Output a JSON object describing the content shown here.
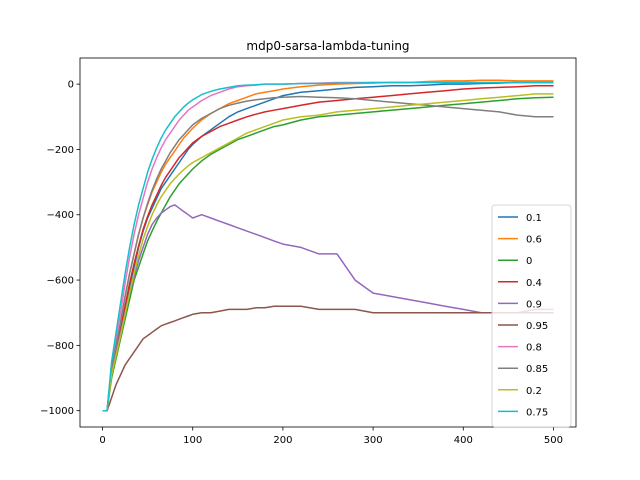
{
  "chart_data": {
    "type": "line",
    "title": "mdp0-sarsa-lambda-tuning",
    "xlabel": "",
    "ylabel": "",
    "xlim": [
      -25,
      525
    ],
    "ylim": [
      -1050,
      80
    ],
    "xticks": [
      0,
      100,
      200,
      300,
      400,
      500
    ],
    "yticks": [
      -1000,
      -800,
      -600,
      -400,
      -200,
      0
    ],
    "grid": false,
    "legend_position": "center-right",
    "x": [
      0,
      5,
      10,
      15,
      20,
      25,
      30,
      35,
      40,
      45,
      50,
      55,
      60,
      65,
      70,
      75,
      80,
      85,
      90,
      95,
      100,
      110,
      120,
      130,
      140,
      150,
      160,
      170,
      180,
      190,
      200,
      220,
      240,
      260,
      280,
      300,
      320,
      340,
      360,
      380,
      400,
      420,
      440,
      460,
      480,
      500
    ],
    "series": [
      {
        "name": "0.1",
        "color": "#1f77b4",
        "values": [
          -1000,
          -1000,
          -880,
          -820,
          -760,
          -690,
          -620,
          -560,
          -500,
          -450,
          -410,
          -380,
          -350,
          -320,
          -300,
          -280,
          -260,
          -240,
          -220,
          -200,
          -185,
          -160,
          -140,
          -120,
          -100,
          -85,
          -75,
          -65,
          -55,
          -45,
          -35,
          -25,
          -20,
          -15,
          -10,
          -8,
          -5,
          -5,
          -3,
          0,
          0,
          2,
          3,
          5,
          5,
          5
        ]
      },
      {
        "name": "0.6",
        "color": "#ff7f0e",
        "values": [
          -1000,
          -1000,
          -870,
          -800,
          -730,
          -650,
          -580,
          -520,
          -460,
          -410,
          -370,
          -330,
          -300,
          -270,
          -245,
          -225,
          -205,
          -185,
          -165,
          -150,
          -135,
          -110,
          -90,
          -75,
          -60,
          -50,
          -40,
          -30,
          -25,
          -20,
          -15,
          -8,
          -3,
          0,
          2,
          3,
          5,
          5,
          8,
          10,
          10,
          12,
          12,
          10,
          10,
          10
        ]
      },
      {
        "name": "0",
        "color": "#2ca02c",
        "values": [
          -1000,
          -1000,
          -900,
          -840,
          -780,
          -720,
          -660,
          -600,
          -560,
          -520,
          -480,
          -450,
          -420,
          -395,
          -370,
          -345,
          -325,
          -305,
          -290,
          -275,
          -260,
          -235,
          -215,
          -200,
          -185,
          -170,
          -160,
          -150,
          -140,
          -130,
          -125,
          -110,
          -100,
          -95,
          -90,
          -85,
          -80,
          -75,
          -70,
          -65,
          -60,
          -55,
          -50,
          -45,
          -42,
          -40
        ]
      },
      {
        "name": "0.4",
        "color": "#d62728",
        "values": [
          -1000,
          -1000,
          -880,
          -815,
          -750,
          -680,
          -610,
          -550,
          -495,
          -445,
          -405,
          -370,
          -340,
          -310,
          -285,
          -265,
          -245,
          -225,
          -210,
          -195,
          -180,
          -160,
          -145,
          -130,
          -120,
          -110,
          -100,
          -92,
          -85,
          -80,
          -75,
          -65,
          -55,
          -50,
          -45,
          -40,
          -35,
          -30,
          -25,
          -20,
          -15,
          -12,
          -10,
          -8,
          -5,
          -5
        ]
      },
      {
        "name": "0.9",
        "color": "#9467bd",
        "values": [
          -1000,
          -1000,
          -880,
          -820,
          -760,
          -700,
          -640,
          -590,
          -540,
          -500,
          -460,
          -430,
          -410,
          -395,
          -385,
          -375,
          -370,
          -380,
          -390,
          -400,
          -410,
          -400,
          -410,
          -420,
          -430,
          -440,
          -450,
          -460,
          -470,
          -480,
          -490,
          -500,
          -520,
          -520,
          -600,
          -640,
          -650,
          -660,
          -670,
          -680,
          -690,
          -700,
          -700,
          -700,
          -690,
          -690
        ]
      },
      {
        "name": "0.95",
        "color": "#8c564b",
        "values": [
          -1000,
          -1000,
          -960,
          -920,
          -890,
          -860,
          -840,
          -820,
          -800,
          -780,
          -770,
          -760,
          -750,
          -740,
          -735,
          -730,
          -725,
          -720,
          -715,
          -710,
          -705,
          -700,
          -700,
          -695,
          -690,
          -690,
          -690,
          -685,
          -685,
          -680,
          -680,
          -680,
          -690,
          -690,
          -690,
          -700,
          -700,
          -700,
          -700,
          -700,
          -700,
          -700,
          -700,
          -700,
          -700,
          -700
        ]
      },
      {
        "name": "0.8",
        "color": "#e377c2",
        "values": [
          -1000,
          -1000,
          -860,
          -780,
          -700,
          -610,
          -530,
          -460,
          -400,
          -350,
          -300,
          -260,
          -225,
          -195,
          -170,
          -150,
          -130,
          -110,
          -95,
          -80,
          -70,
          -50,
          -35,
          -25,
          -15,
          -8,
          -5,
          -3,
          0,
          0,
          0,
          2,
          3,
          5,
          5,
          5,
          5,
          5,
          5,
          5,
          5,
          5,
          5,
          5,
          5,
          5
        ]
      },
      {
        "name": "0.85",
        "color": "#7f7f7f",
        "values": [
          -1000,
          -1000,
          -870,
          -800,
          -730,
          -650,
          -580,
          -520,
          -460,
          -410,
          -365,
          -325,
          -290,
          -260,
          -235,
          -210,
          -190,
          -170,
          -155,
          -140,
          -125,
          -105,
          -90,
          -75,
          -65,
          -58,
          -52,
          -48,
          -45,
          -42,
          -40,
          -38,
          -40,
          -42,
          -45,
          -50,
          -55,
          -60,
          -65,
          -70,
          -75,
          -80,
          -85,
          -95,
          -100,
          -100
        ]
      },
      {
        "name": "0.2",
        "color": "#bcbd22",
        "values": [
          -1000,
          -1000,
          -890,
          -830,
          -770,
          -705,
          -640,
          -580,
          -525,
          -475,
          -435,
          -400,
          -370,
          -345,
          -325,
          -305,
          -290,
          -275,
          -262,
          -250,
          -240,
          -225,
          -210,
          -195,
          -180,
          -165,
          -150,
          -140,
          -130,
          -120,
          -110,
          -100,
          -95,
          -85,
          -80,
          -75,
          -70,
          -65,
          -60,
          -55,
          -50,
          -45,
          -40,
          -35,
          -30,
          -30
        ]
      },
      {
        "name": "0.75",
        "color": "#17becf",
        "values": [
          -1000,
          -1000,
          -850,
          -760,
          -670,
          -580,
          -500,
          -430,
          -370,
          -320,
          -270,
          -230,
          -195,
          -165,
          -140,
          -120,
          -100,
          -85,
          -70,
          -58,
          -48,
          -32,
          -22,
          -15,
          -10,
          -5,
          -3,
          -2,
          0,
          0,
          0,
          2,
          2,
          3,
          3,
          5,
          5,
          5,
          5,
          5,
          5,
          5,
          5,
          5,
          5,
          5
        ]
      }
    ]
  }
}
